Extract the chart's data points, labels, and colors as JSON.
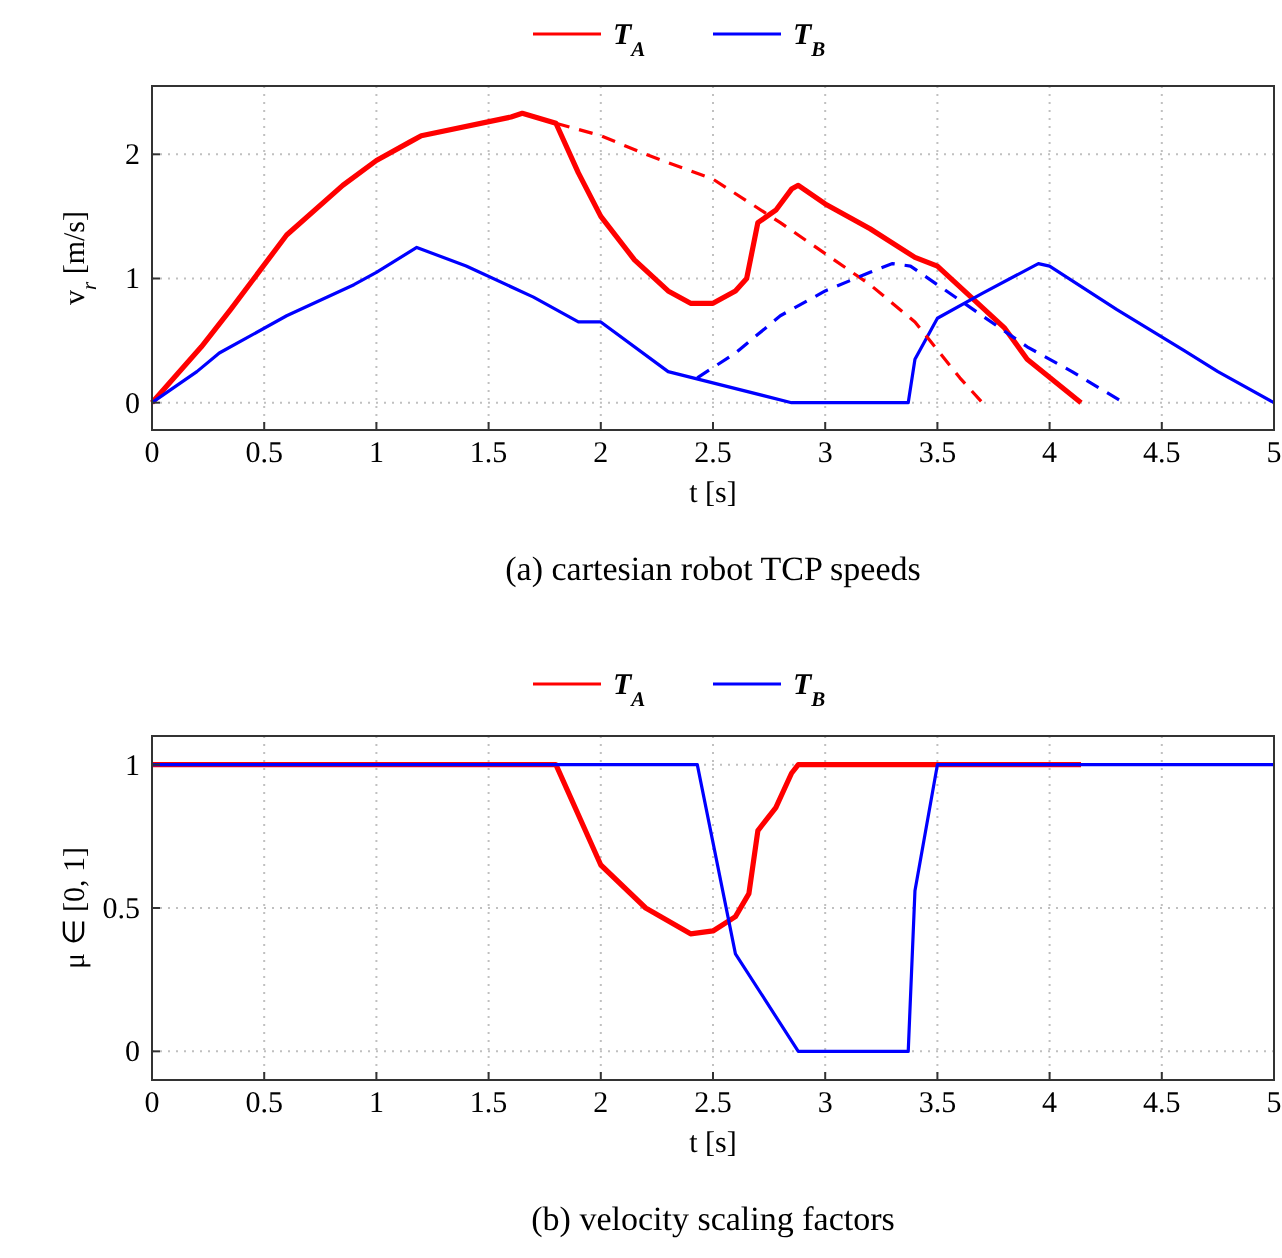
{
  "chart_data": [
    {
      "type": "line",
      "title": "(a) cartesian robot TCP speeds",
      "xlabel": "t [s]",
      "ylabel": "v$_{r}$ [m/s]",
      "xlim": [
        0,
        5
      ],
      "ylim": [
        -0.22,
        2.55
      ],
      "xticks": [
        0,
        0.5,
        1,
        1.5,
        2,
        2.5,
        3,
        3.5,
        4,
        4.5,
        5
      ],
      "yticks": [
        0,
        1,
        2
      ],
      "grid": true,
      "legend": "top",
      "line_style": "solid",
      "marker": "none",
      "series": [
        {
          "name": "T$_{A}$",
          "color": "#ff0000",
          "x": [
            0,
            0.22,
            0.35,
            0.6,
            0.85,
            1.0,
            1.15,
            1.2,
            1.6,
            1.65,
            1.8,
            1.9,
            2.0,
            2.15,
            2.3,
            2.4,
            2.5,
            2.6,
            2.65,
            2.7,
            2.78,
            2.85,
            2.88,
            3.0,
            3.2,
            3.4,
            3.5,
            3.65,
            3.8,
            3.9,
            4.14
          ],
          "values": [
            0,
            0.45,
            0.75,
            1.35,
            1.75,
            1.95,
            2.1,
            2.15,
            2.3,
            2.33,
            2.25,
            1.85,
            1.5,
            1.15,
            0.9,
            0.8,
            0.8,
            0.9,
            1.0,
            1.45,
            1.55,
            1.72,
            1.75,
            1.6,
            1.4,
            1.17,
            1.1,
            0.85,
            0.6,
            0.35,
            0
          ]
        },
        {
          "name": "T$_{B}$",
          "color": "#0000ff",
          "x": [
            0,
            0.2,
            0.3,
            0.6,
            0.9,
            1.0,
            1.18,
            1.4,
            1.7,
            1.9,
            2.0,
            2.3,
            2.85,
            3.37,
            3.4,
            3.5,
            3.7,
            3.95,
            4.0,
            4.3,
            4.6,
            4.75,
            5
          ],
          "values": [
            0,
            0.25,
            0.4,
            0.7,
            0.95,
            1.05,
            1.25,
            1.1,
            0.85,
            0.65,
            0.65,
            0.25,
            0,
            0,
            0.35,
            0.68,
            0.88,
            1.12,
            1.1,
            0.75,
            0.42,
            0.25,
            0
          ]
        },
        {
          "color": "#ff0000",
          "line_style": "dashed",
          "x": [
            1.8,
            2.0,
            2.2,
            2.5,
            2.8,
            3.0,
            3.2,
            3.4,
            3.6,
            3.7
          ],
          "values": [
            2.25,
            2.15,
            2.0,
            1.8,
            1.45,
            1.2,
            0.95,
            0.65,
            0.2,
            0
          ]
        },
        {
          "color": "#0000ff",
          "line_style": "dashed",
          "x": [
            2.43,
            2.6,
            2.8,
            3.0,
            3.2,
            3.3,
            3.38,
            3.5,
            3.7,
            3.9,
            4.1,
            4.33
          ],
          "values": [
            0.2,
            0.4,
            0.7,
            0.9,
            1.05,
            1.12,
            1.1,
            0.95,
            0.7,
            0.45,
            0.25,
            0
          ]
        }
      ]
    },
    {
      "type": "line",
      "title": "(b) velocity scaling factors",
      "xlabel": "t [s]",
      "ylabel": "μ ∈ [0, 1]",
      "xlim": [
        0,
        5
      ],
      "ylim": [
        -0.1,
        1.1
      ],
      "xticks": [
        0,
        0.5,
        1,
        1.5,
        2,
        2.5,
        3,
        3.5,
        4,
        4.5,
        5
      ],
      "yticks": [
        0,
        0.5,
        1
      ],
      "grid": true,
      "legend": "top",
      "line_style": "solid",
      "marker": "none",
      "series": [
        {
          "name": "T$_{A}$",
          "color": "#ff0000",
          "x": [
            0,
            1.8,
            2.0,
            2.2,
            2.4,
            2.5,
            2.6,
            2.66,
            2.7,
            2.78,
            2.85,
            2.88,
            4.14
          ],
          "values": [
            1,
            1,
            0.65,
            0.5,
            0.41,
            0.42,
            0.47,
            0.55,
            0.77,
            0.85,
            0.97,
            1,
            1
          ]
        },
        {
          "name": "T$_{B}$",
          "color": "#0000ff",
          "x": [
            0,
            2.43,
            2.6,
            2.88,
            3.37,
            3.4,
            3.5,
            5
          ],
          "values": [
            1,
            1,
            0.34,
            0,
            0,
            0.56,
            1,
            1
          ]
        }
      ]
    }
  ]
}
